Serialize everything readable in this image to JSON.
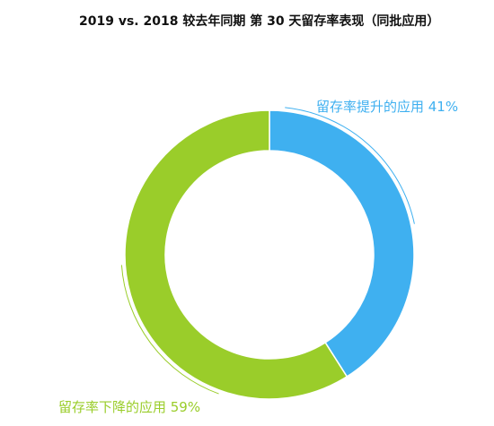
{
  "title": "2019 vs. 2018 较去年同期 第 30 天留存率表现（同批应用）",
  "chart_data": {
    "type": "pie",
    "donut": true,
    "title": "2019 vs. 2018 较去年同期 第 30 天留存率表现（同批应用）",
    "slices": [
      {
        "label": "留存率提升的应用",
        "value": 41,
        "display": "留存率提升的应用 41%",
        "color": "#3fb0f0"
      },
      {
        "label": "留存率下降的应用",
        "value": 59,
        "display": "留存率下降的应用 59%",
        "color": "#9acd2a"
      }
    ],
    "start_angle": "12 o'clock",
    "direction": "clockwise",
    "legend": "none"
  }
}
